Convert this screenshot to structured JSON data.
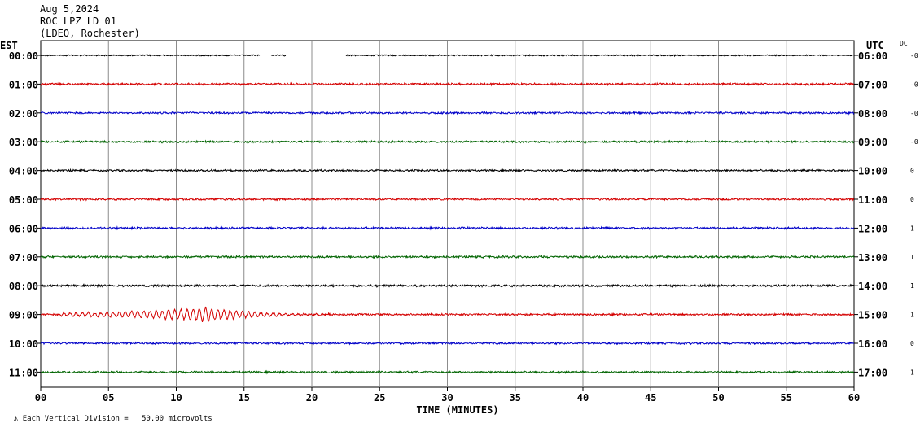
{
  "header": {
    "date": "Aug 5,2024",
    "station": "ROC LPZ LD 01",
    "network": "(LDEO, Rochester)"
  },
  "left_zone_label": "EST",
  "right_zone_label": "UTC",
  "dc_label": "DC",
  "footer": {
    "scale_text": "Each Vertical Division =   50.00 microvolts"
  },
  "chart_data": {
    "type": "line",
    "xlabel": "TIME (MINUTES)",
    "xlim": [
      0,
      60
    ],
    "x_ticks": [
      "00",
      "05",
      "10",
      "15",
      "20",
      "25",
      "30",
      "35",
      "40",
      "45",
      "50",
      "55",
      "60"
    ],
    "grid": true,
    "trace_colors": [
      "#000000",
      "#d40000",
      "#0000c8",
      "#006400"
    ],
    "rows": [
      {
        "left_time": "00:00",
        "right_time": "06:00",
        "dc": "-0",
        "color": "#000000",
        "amplitude": 0.7,
        "gaps": [
          [
            16.2,
            17.0
          ],
          [
            18.1,
            22.5
          ]
        ]
      },
      {
        "left_time": "01:00",
        "right_time": "07:00",
        "dc": "-0",
        "color": "#d40000",
        "amplitude": 1.1,
        "gaps": []
      },
      {
        "left_time": "02:00",
        "right_time": "08:00",
        "dc": "-0",
        "color": "#0000c8",
        "amplitude": 1.0,
        "gaps": []
      },
      {
        "left_time": "03:00",
        "right_time": "09:00",
        "dc": "-0",
        "color": "#006400",
        "amplitude": 1.0,
        "gaps": []
      },
      {
        "left_time": "04:00",
        "right_time": "10:00",
        "dc": "0",
        "color": "#000000",
        "amplitude": 1.0,
        "gaps": []
      },
      {
        "left_time": "05:00",
        "right_time": "11:00",
        "dc": "0",
        "color": "#d40000",
        "amplitude": 1.0,
        "gaps": []
      },
      {
        "left_time": "06:00",
        "right_time": "12:00",
        "dc": "1",
        "color": "#0000c8",
        "amplitude": 1.1,
        "gaps": []
      },
      {
        "left_time": "07:00",
        "right_time": "13:00",
        "dc": "1",
        "color": "#006400",
        "amplitude": 1.1,
        "gaps": []
      },
      {
        "left_time": "08:00",
        "right_time": "14:00",
        "dc": "1",
        "color": "#000000",
        "amplitude": 1.1,
        "gaps": []
      },
      {
        "left_time": "09:00",
        "right_time": "15:00",
        "dc": "1",
        "color": "#d40000",
        "amplitude": 1.0,
        "gaps": [],
        "event": {
          "start": 1.5,
          "peak": 12.3,
          "end": 33.0,
          "peak_amplitude": 9.0
        }
      },
      {
        "left_time": "10:00",
        "right_time": "16:00",
        "dc": "0",
        "color": "#0000c8",
        "amplitude": 1.0,
        "gaps": []
      },
      {
        "left_time": "11:00",
        "right_time": "17:00",
        "dc": "1",
        "color": "#006400",
        "amplitude": 1.0,
        "gaps": []
      }
    ]
  }
}
